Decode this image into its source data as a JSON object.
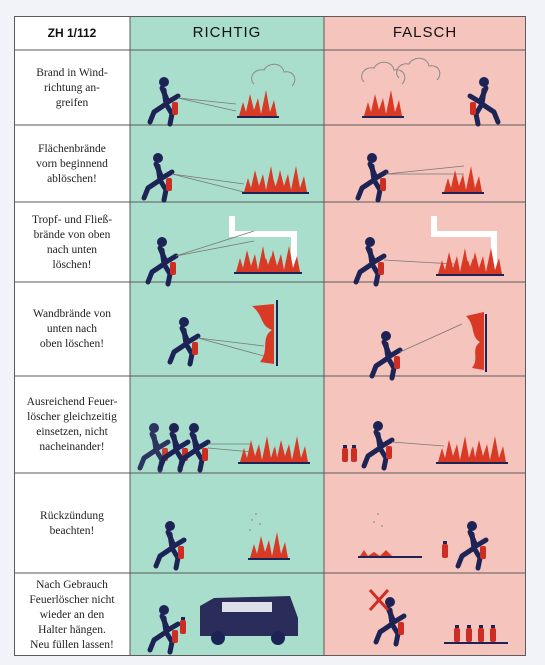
{
  "sheet": {
    "code": "ZH 1/112",
    "correct_header": "RICHTIG",
    "wrong_header": "FALSCH"
  },
  "colors": {
    "correct_bg": "#a9ddcc",
    "wrong_bg": "#f5c4bc",
    "fire_red": "#d93a25",
    "figure_navy": "#1e2355",
    "extinguisher_red": "#cc2e24"
  },
  "rows": [
    {
      "lines": [
        "Brand in Wind-",
        "richtung an-",
        "greifen"
      ],
      "icon": "wind-direction-icon"
    },
    {
      "lines": [
        "Flächenbrände",
        "vorn beginnend",
        "ablöschen!"
      ],
      "icon": "surface-fire-icon"
    },
    {
      "lines": [
        "Tropf- und Fließ-",
        "brände von oben",
        "nach unten",
        "löschen!"
      ],
      "icon": "dripping-fire-icon"
    },
    {
      "lines": [
        "Wandbrände von",
        "unten nach",
        "oben löschen!"
      ],
      "icon": "wall-fire-icon"
    },
    {
      "lines": [
        "Ausreichend Feuer-",
        "löscher gleichzeitig",
        "einsetzen, nicht",
        "nacheinander!"
      ],
      "icon": "multiple-extinguishers-icon"
    },
    {
      "lines": [
        "Rückzündung",
        "beachten!"
      ],
      "icon": "reignition-icon"
    },
    {
      "lines": [
        "Nach Gebrauch",
        "Feuerlöscher nicht",
        "wieder an den",
        "Halter hängen.",
        "Neu füllen lassen!"
      ],
      "icon": "refill-icon"
    }
  ]
}
